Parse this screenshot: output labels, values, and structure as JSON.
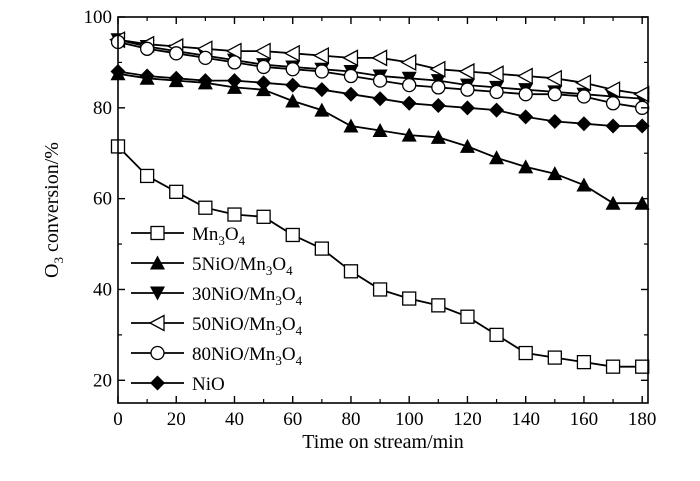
{
  "chart_data": {
    "type": "line",
    "title": "",
    "xlabel": "Time on stream/min",
    "ylabel": {
      "pre": "O",
      "sub": "3",
      "post": " conversion/%"
    },
    "xlim": [
      0,
      182
    ],
    "ylim": [
      15,
      100
    ],
    "xticks": [
      0,
      20,
      40,
      60,
      80,
      100,
      120,
      140,
      160,
      180
    ],
    "yticks": [
      20,
      40,
      60,
      80,
      100
    ],
    "grid": false,
    "legend_position": "lower-left",
    "x": [
      0,
      10,
      20,
      30,
      40,
      50,
      60,
      70,
      80,
      90,
      100,
      110,
      120,
      130,
      140,
      150,
      160,
      170,
      180
    ],
    "series": [
      {
        "name": "Mn3O4",
        "label_parts": [
          [
            "Mn",
            ""
          ],
          [
            "3",
            "sub"
          ],
          [
            "O",
            ""
          ],
          [
            "4",
            "sub"
          ]
        ],
        "marker": "square-open",
        "values": [
          71.5,
          65,
          61.5,
          58,
          56.5,
          56,
          52,
          49,
          44,
          40,
          38,
          36.5,
          34,
          30,
          26,
          25,
          24,
          23,
          23
        ]
      },
      {
        "name": "5NiO/Mn3O4",
        "label_parts": [
          [
            "5NiO/Mn",
            ""
          ],
          [
            "3",
            "sub"
          ],
          [
            "O",
            ""
          ],
          [
            "4",
            "sub"
          ]
        ],
        "marker": "triangle-up-filled",
        "values": [
          87.5,
          86.5,
          86,
          85.5,
          84.5,
          84,
          81.5,
          79.5,
          76,
          75,
          74,
          73.5,
          71.5,
          69,
          67,
          65.5,
          63,
          59,
          59
        ]
      },
      {
        "name": "30NiO/Mn3O4",
        "label_parts": [
          [
            "30NiO/Mn",
            ""
          ],
          [
            "3",
            "sub"
          ],
          [
            "O",
            ""
          ],
          [
            "4",
            "sub"
          ]
        ],
        "marker": "triangle-down-filled",
        "values": [
          95,
          93.5,
          92.5,
          91.5,
          90.5,
          89.5,
          89,
          88.5,
          88,
          87,
          86.5,
          86,
          85,
          84.5,
          84,
          83.5,
          83,
          82.5,
          82
        ]
      },
      {
        "name": "50NiO/Mn3O4",
        "label_parts": [
          [
            "50NiO/Mn",
            ""
          ],
          [
            "3",
            "sub"
          ],
          [
            "O",
            ""
          ],
          [
            "4",
            "sub"
          ]
        ],
        "marker": "triangle-left-open",
        "values": [
          95,
          94,
          93.5,
          93,
          92.5,
          92.5,
          92,
          91.5,
          91,
          91,
          90,
          88.5,
          88,
          87.5,
          87,
          86.5,
          85.5,
          84,
          83
        ]
      },
      {
        "name": "80NiO/Mn3O4",
        "label_parts": [
          [
            "80NiO/Mn",
            ""
          ],
          [
            "3",
            "sub"
          ],
          [
            "O",
            ""
          ],
          [
            "4",
            "sub"
          ]
        ],
        "marker": "circle-open",
        "values": [
          94.5,
          93,
          92,
          91,
          90,
          89,
          88.5,
          88,
          87,
          86,
          85,
          84.5,
          84,
          83.5,
          83,
          83,
          82.5,
          81,
          80
        ]
      },
      {
        "name": "NiO",
        "label_parts": [
          [
            "NiO",
            ""
          ]
        ],
        "marker": "diamond-filled",
        "values": [
          88,
          87,
          86.5,
          86,
          86,
          85.5,
          85,
          84,
          83,
          82,
          81,
          80.5,
          80,
          79.5,
          78,
          77,
          76.5,
          76,
          76
        ]
      }
    ]
  }
}
